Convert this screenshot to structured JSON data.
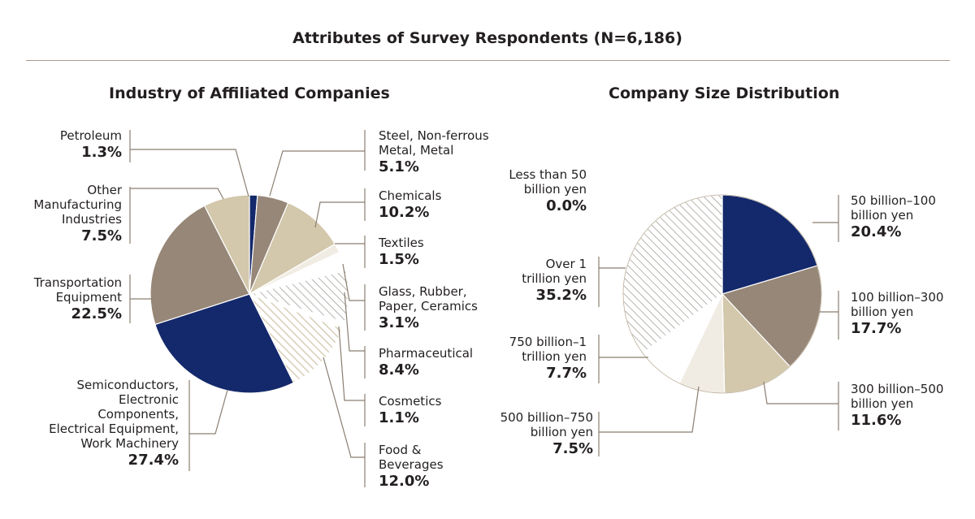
{
  "page": {
    "title": "Attributes of Survey Respondents (N=6,186)"
  },
  "colors": {
    "navy": "#14296b",
    "taupe": "#978778",
    "tan": "#d3c7ac",
    "cream": "#f1ece3",
    "white": "#ffffff",
    "leader": "#8a7e70",
    "hatch": "#8a847c"
  },
  "chart_data": [
    {
      "type": "pie",
      "title": "Industry of Affiliated Companies",
      "start": "12 o'clock, clockwise",
      "slices": [
        {
          "label": "Petroleum",
          "value": 1.3,
          "color": "navy"
        },
        {
          "label": "Steel, Non-ferrous\nMetal, Metal",
          "value": 5.1,
          "color": "taupe"
        },
        {
          "label": "Chemicals",
          "value": 10.2,
          "color": "tan"
        },
        {
          "label": "Textiles",
          "value": 1.5,
          "color": "cream"
        },
        {
          "label": "Glass, Rubber,\nPaper, Ceramics",
          "value": 3.1,
          "color": "white"
        },
        {
          "label": "Pharmaceutical",
          "value": 8.4,
          "color": "hatch"
        },
        {
          "label": "Cosmetics",
          "value": 1.1,
          "color": "white"
        },
        {
          "label": "Food &\nBeverages",
          "value": 12.0,
          "color": "hatch-tan"
        },
        {
          "label": "Semiconductors,\nElectronic\nComponents,\nElectrical Equipment,\nWork Machinery",
          "value": 27.4,
          "color": "navy"
        },
        {
          "label": "Transportation\nEquipment",
          "value": 22.5,
          "color": "taupe"
        },
        {
          "label": "Other\nManufacturing\nIndustries",
          "value": 7.5,
          "color": "tan"
        }
      ],
      "pct_labels": [
        "1.3%",
        "5.1%",
        "10.2%",
        "1.5%",
        "3.1%",
        "8.4%",
        "1.1%",
        "12.0%",
        "27.4%",
        "22.5%",
        "7.5%"
      ]
    },
    {
      "type": "pie",
      "title": "Company Size Distribution",
      "start": "12 o'clock, clockwise",
      "slices": [
        {
          "label": "Less than 50\nbillion yen",
          "value": 0.0,
          "color": "navy"
        },
        {
          "label": "50 billion–100\nbillion yen",
          "value": 20.4,
          "color": "navy"
        },
        {
          "label": "100 billion–300\nbillion yen",
          "value": 17.7,
          "color": "taupe"
        },
        {
          "label": "300 billion–500\nbillion yen",
          "value": 11.6,
          "color": "tan"
        },
        {
          "label": "500 billion–750\nbillion yen",
          "value": 7.5,
          "color": "cream"
        },
        {
          "label": "750 billion–1\ntrillion yen",
          "value": 7.7,
          "color": "white"
        },
        {
          "label": "Over 1\ntrillion yen",
          "value": 35.2,
          "color": "hatch"
        }
      ],
      "pct_labels": [
        "0.0%",
        "20.4%",
        "17.7%",
        "11.6%",
        "7.5%",
        "7.7%",
        "35.2%"
      ]
    }
  ]
}
